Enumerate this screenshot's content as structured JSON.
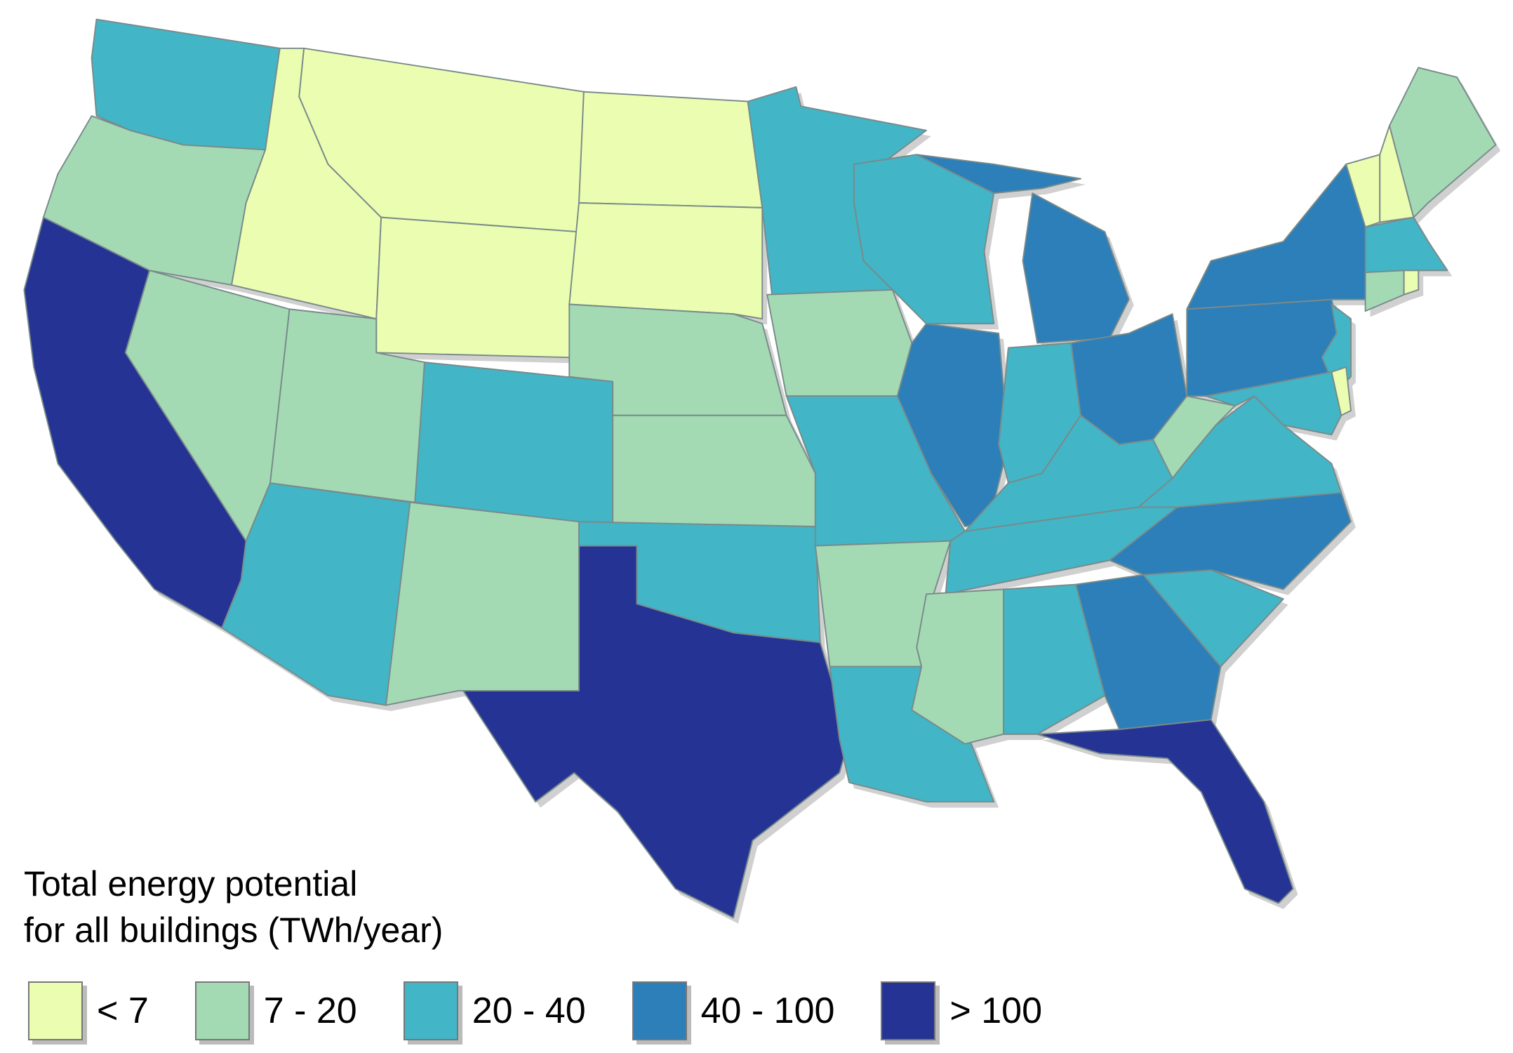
{
  "legend": {
    "title_line1": "Total energy potential",
    "title_line2": "for all buildings (TWh/year)",
    "bins": [
      {
        "label": "< 7",
        "color": "#ebfdb0"
      },
      {
        "label": "7 - 20",
        "color": "#a3dab4"
      },
      {
        "label": "20 - 40",
        "color": "#42b5c6"
      },
      {
        "label": "40 - 100",
        "color": "#2c7fb8"
      },
      {
        "label": "> 100",
        "color": "#253494"
      }
    ]
  },
  "states": {
    "WA": 2,
    "OR": 1,
    "CA": 4,
    "ID": 0,
    "MT": 0,
    "WY": 0,
    "ND": 0,
    "SD": 0,
    "NV": 1,
    "UT": 1,
    "CO": 2,
    "AZ": 2,
    "NM": 1,
    "NE": 1,
    "KS": 1,
    "OK": 2,
    "TX": 4,
    "MN": 2,
    "IA": 1,
    "MO": 2,
    "AR": 1,
    "LA": 2,
    "WI": 2,
    "IL": 3,
    "MI": 3,
    "IN": 2,
    "OH": 3,
    "KY": 2,
    "TN": 2,
    "MS": 1,
    "AL": 2,
    "GA": 3,
    "FL": 4,
    "SC": 2,
    "NC": 3,
    "VA": 2,
    "WV": 1,
    "PA": 3,
    "NY": 3,
    "NJ": 2,
    "MD": 2,
    "DE": 0,
    "VT": 0,
    "NH": 0,
    "ME": 1,
    "MA": 2,
    "CT": 1,
    "RI": 0
  }
}
